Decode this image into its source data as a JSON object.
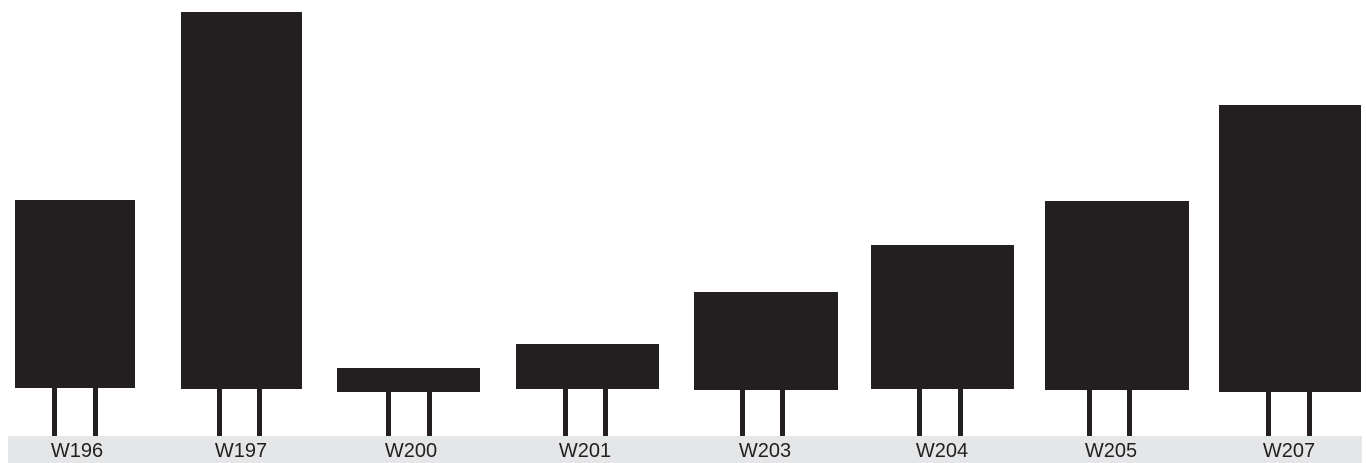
{
  "resistors": [
    {
      "label": "W196"
    },
    {
      "label": "W197"
    },
    {
      "label": "W200"
    },
    {
      "label": "W201"
    },
    {
      "label": "W203"
    },
    {
      "label": "W204"
    },
    {
      "label": "W205"
    },
    {
      "label": "W207"
    }
  ],
  "colors": {
    "body": "#231f20",
    "band": "#e5e6e7",
    "background": "#ffffff"
  }
}
